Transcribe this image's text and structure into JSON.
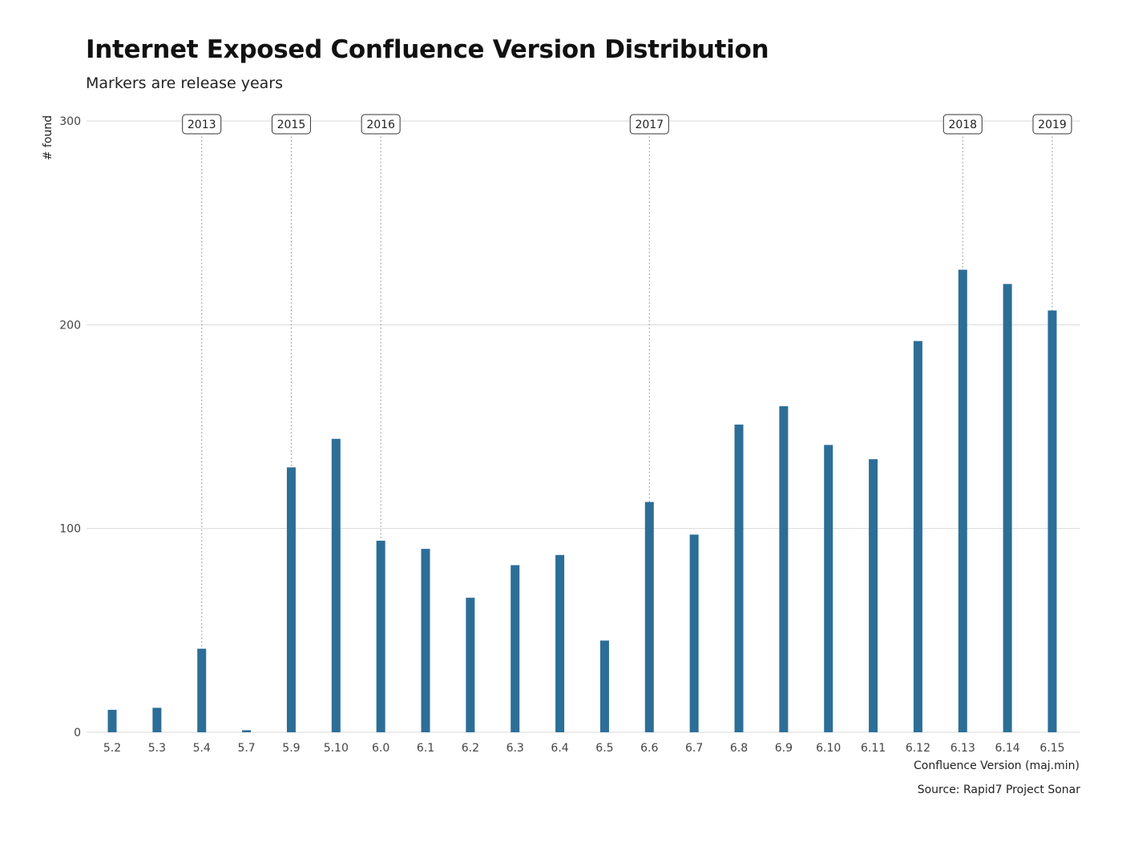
{
  "chart_data": {
    "type": "bar",
    "title": "Internet Exposed Confluence Version Distribution",
    "subtitle": "Markers are release years",
    "xlabel": "Confluence Version (maj.min)",
    "ylabel": "# found",
    "caption": "Source: Rapid7 Project Sonar",
    "ylim": [
      0,
      300
    ],
    "yticks": [
      0,
      100,
      200,
      300
    ],
    "categories": [
      "5.2",
      "5.3",
      "5.4",
      "5.7",
      "5.9",
      "5.10",
      "6.0",
      "6.1",
      "6.2",
      "6.3",
      "6.4",
      "6.5",
      "6.6",
      "6.7",
      "6.8",
      "6.9",
      "6.10",
      "6.11",
      "6.12",
      "6.13",
      "6.14",
      "6.15"
    ],
    "values": [
      11,
      12,
      41,
      1,
      130,
      144,
      94,
      90,
      66,
      82,
      87,
      45,
      113,
      97,
      151,
      160,
      141,
      134,
      192,
      227,
      220,
      207
    ],
    "bar_color": "#2c6e97",
    "grid": true,
    "markers": [
      {
        "category": "5.4",
        "label": "2013"
      },
      {
        "category": "5.9",
        "label": "2015"
      },
      {
        "category": "6.0",
        "label": "2016"
      },
      {
        "category": "6.6",
        "label": "2017"
      },
      {
        "category": "6.13",
        "label": "2018"
      },
      {
        "category": "6.15",
        "label": "2019"
      }
    ]
  }
}
